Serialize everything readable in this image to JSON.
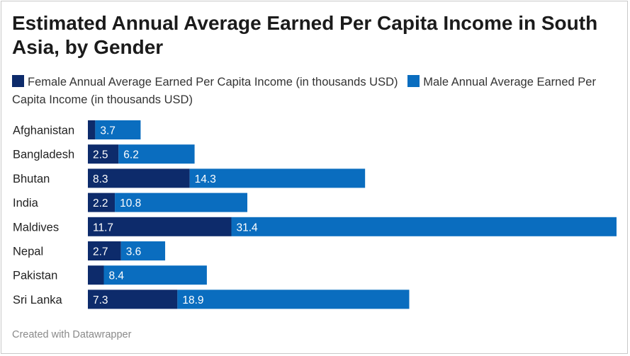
{
  "chart_data": {
    "type": "bar",
    "orientation": "horizontal",
    "stacked": true,
    "title": "Estimated Annual Average Earned Per Capita Income in South Asia, by Gender",
    "categories": [
      "Afghanistan",
      "Bangladesh",
      "Bhutan",
      "India",
      "Maldives",
      "Nepal",
      "Pakistan",
      "Sri Lanka"
    ],
    "series": [
      {
        "name": "Female Annual Average Earned Per Capita Income (in thousands USD)",
        "color": "#0d2b6b",
        "values": [
          0.6,
          2.5,
          8.3,
          2.2,
          11.7,
          2.7,
          1.3,
          7.3
        ],
        "labels": [
          "",
          "2.5",
          "8.3",
          "2.2",
          "11.7",
          "2.7",
          "",
          "7.3"
        ]
      },
      {
        "name": "Male Annual Average Earned Per Capita Income (in thousands USD)",
        "color": "#0a6dbf",
        "values": [
          3.7,
          6.2,
          14.3,
          10.8,
          31.4,
          3.6,
          8.4,
          18.9
        ],
        "labels": [
          "3.7",
          "6.2",
          "14.3",
          "10.8",
          "31.4",
          "3.6",
          "8.4",
          "18.9"
        ]
      }
    ],
    "xlim": [
      0,
      43.1
    ],
    "grid": false,
    "legend_position": "top"
  },
  "footer": "Created with Datawrapper"
}
